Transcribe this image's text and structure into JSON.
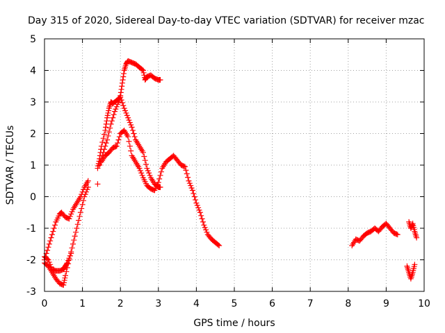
{
  "chart_data": {
    "type": "scatter",
    "title": "Day 315 of 2020, Sidereal Day-to-day VTEC variation (SDTVAR) for receiver mzac",
    "xlabel": "GPS time / hours",
    "ylabel": "SDTVAR / TECUs",
    "xlim": [
      0,
      10
    ],
    "ylim": [
      -3,
      5
    ],
    "xticks": [
      0,
      1,
      2,
      3,
      4,
      5,
      6,
      7,
      8,
      9,
      10
    ],
    "yticks": [
      -3,
      -2,
      -1,
      0,
      1,
      2,
      3,
      4,
      5
    ],
    "grid": true,
    "marker": "+",
    "color": "#ff0000",
    "tracks": [
      {
        "x": [
          0.0,
          0.1,
          0.2,
          0.3,
          0.4,
          0.45,
          0.55,
          0.65,
          0.75,
          0.85,
          0.95,
          1.05,
          1.15
        ],
        "y": [
          -2.0,
          -1.6,
          -1.2,
          -0.8,
          -0.55,
          -0.5,
          -0.65,
          -0.7,
          -0.4,
          -0.2,
          0.0,
          0.3,
          0.5
        ]
      },
      {
        "x": [
          0.0,
          0.1,
          0.2,
          0.3,
          0.4,
          0.5,
          0.55,
          0.65,
          0.75,
          0.85,
          0.95,
          1.05,
          1.15
        ],
        "y": [
          -2.1,
          -2.2,
          -2.4,
          -2.6,
          -2.75,
          -2.8,
          -2.5,
          -2.0,
          -1.5,
          -1.0,
          -0.5,
          0.0,
          0.3
        ]
      },
      {
        "x": [
          0.0,
          0.1,
          0.2,
          0.3,
          0.4,
          0.5,
          0.55,
          0.6,
          0.7
        ],
        "y": [
          -1.9,
          -2.0,
          -2.3,
          -2.35,
          -2.35,
          -2.3,
          -2.2,
          -2.1,
          -1.8
        ]
      },
      {
        "x": [
          1.4,
          1.45,
          1.5,
          1.6,
          1.65,
          1.7,
          1.75,
          1.8,
          1.9,
          2.0,
          2.1,
          2.2,
          2.3,
          2.4,
          2.5,
          2.6,
          2.7,
          2.8,
          2.9,
          3.0,
          3.05
        ],
        "y": [
          0.9,
          1.2,
          1.6,
          2.1,
          2.5,
          2.8,
          3.0,
          2.95,
          3.05,
          3.15,
          2.8,
          2.5,
          2.2,
          1.8,
          1.6,
          1.4,
          0.9,
          0.6,
          0.4,
          0.3,
          0.3
        ]
      },
      {
        "x": [
          1.45,
          1.55,
          1.65,
          1.75,
          1.85,
          1.95,
          2.0,
          2.05,
          2.1,
          2.15,
          2.2,
          2.3,
          2.4,
          2.5,
          2.6,
          2.65,
          2.7,
          2.8,
          2.9,
          3.0,
          3.05
        ],
        "y": [
          1.0,
          1.4,
          1.8,
          2.3,
          2.7,
          3.0,
          3.2,
          3.6,
          4.0,
          4.2,
          4.3,
          4.25,
          4.2,
          4.1,
          4.0,
          3.7,
          3.8,
          3.85,
          3.75,
          3.7,
          3.7
        ]
      },
      {
        "x": [
          1.5,
          1.6,
          1.7,
          1.8,
          1.9,
          2.0,
          2.1,
          2.2,
          2.3,
          2.4,
          2.5,
          2.6,
          2.7,
          2.8,
          2.9,
          3.0,
          3.1,
          3.2,
          3.3,
          3.4,
          3.5,
          3.6,
          3.7,
          3.8,
          3.9,
          4.0,
          4.1,
          4.2,
          4.3,
          4.4,
          4.5,
          4.6
        ],
        "y": [
          1.1,
          1.3,
          1.4,
          1.55,
          1.6,
          2.0,
          2.1,
          1.9,
          1.3,
          1.1,
          0.9,
          0.6,
          0.35,
          0.25,
          0.2,
          0.45,
          0.9,
          1.1,
          1.2,
          1.3,
          1.15,
          1.0,
          0.95,
          0.5,
          0.2,
          -0.2,
          -0.5,
          -0.9,
          -1.2,
          -1.35,
          -1.45,
          -1.55
        ]
      },
      {
        "x": [
          1.4
        ],
        "y": [
          0.4
        ]
      },
      {
        "x": [
          8.1,
          8.2,
          8.3,
          8.4,
          8.5,
          8.6,
          8.7,
          8.8,
          8.9,
          9.0,
          9.1,
          9.2,
          9.3
        ],
        "y": [
          -1.55,
          -1.35,
          -1.4,
          -1.25,
          -1.15,
          -1.1,
          -1.0,
          -1.1,
          -0.95,
          -0.85,
          -1.0,
          -1.15,
          -1.2
        ]
      },
      {
        "x": [
          9.55,
          9.6,
          9.65,
          9.7,
          9.75
        ],
        "y": [
          -2.2,
          -2.4,
          -2.6,
          -2.4,
          -2.15
        ]
      },
      {
        "x": [
          9.6,
          9.65,
          9.7,
          9.75,
          9.8
        ],
        "y": [
          -0.8,
          -1.0,
          -0.85,
          -1.1,
          -1.3
        ]
      }
    ]
  }
}
